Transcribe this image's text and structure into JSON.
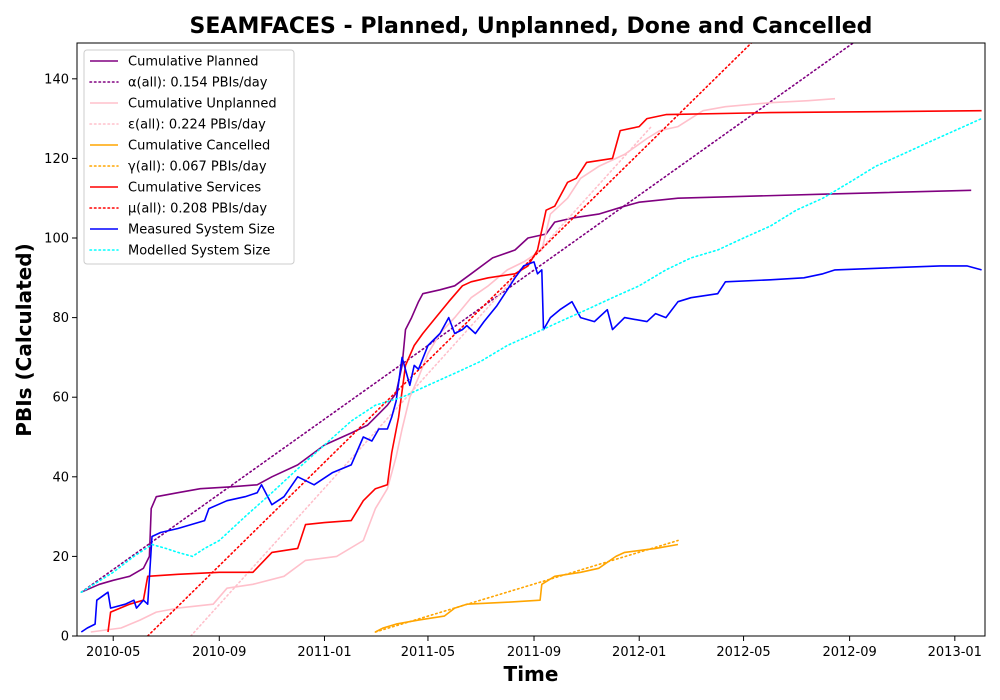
{
  "chart_data": {
    "type": "line",
    "title": "SEAMFACES - Planned, Unplanned, Done  and Cancelled",
    "xlabel": "Time",
    "ylabel": "PBIs (Calculated)",
    "xlim": [
      "2010-03-20",
      "2013-02-05"
    ],
    "ylim": [
      0,
      149
    ],
    "x_ticks": [
      "2010-05",
      "2010-09",
      "2011-01",
      "2011-05",
      "2011-09",
      "2012-01",
      "2012-05",
      "2012-09",
      "2013-01"
    ],
    "y_ticks": [
      0,
      20,
      40,
      60,
      80,
      100,
      120,
      140
    ],
    "grid": false,
    "legend_position": "top-left",
    "series": [
      {
        "name": "Cumulative Planned",
        "color": "#800080",
        "style": "solid",
        "points": [
          [
            "2010-03-25",
            11
          ],
          [
            "2010-04-15",
            13
          ],
          [
            "2010-05-01",
            14
          ],
          [
            "2010-05-20",
            15
          ],
          [
            "2010-06-05",
            17
          ],
          [
            "2010-06-12",
            20
          ],
          [
            "2010-06-14",
            32
          ],
          [
            "2010-06-20",
            35
          ],
          [
            "2010-07-15",
            36
          ],
          [
            "2010-08-10",
            37
          ],
          [
            "2010-09-15",
            37.5
          ],
          [
            "2010-10-15",
            38
          ],
          [
            "2010-11-01",
            40
          ],
          [
            "2010-12-01",
            43
          ],
          [
            "2011-01-01",
            48
          ],
          [
            "2011-02-01",
            51
          ],
          [
            "2011-02-20",
            53
          ],
          [
            "2011-03-15",
            58
          ],
          [
            "2011-03-25",
            61
          ],
          [
            "2011-04-01",
            68
          ],
          [
            "2011-04-05",
            77
          ],
          [
            "2011-04-12",
            80
          ],
          [
            "2011-04-20",
            84
          ],
          [
            "2011-04-25",
            86
          ],
          [
            "2011-05-15",
            87
          ],
          [
            "2011-06-01",
            88
          ],
          [
            "2011-06-20",
            91
          ],
          [
            "2011-07-15",
            95
          ],
          [
            "2011-08-10",
            97
          ],
          [
            "2011-08-25",
            100
          ],
          [
            "2011-09-15",
            101
          ],
          [
            "2011-09-25",
            104
          ],
          [
            "2011-10-15",
            105
          ],
          [
            "2011-11-15",
            106
          ],
          [
            "2011-12-15",
            108
          ],
          [
            "2012-01-01",
            109
          ],
          [
            "2012-02-15",
            110
          ],
          [
            "2012-08-01",
            111
          ],
          [
            "2013-01-20",
            112
          ]
        ]
      },
      {
        "name": "α(all): 0.154 PBIs/day",
        "color": "#800080",
        "style": "dotted",
        "points": [
          [
            "2010-03-25",
            11
          ],
          [
            "2012-09-05",
            149
          ]
        ]
      },
      {
        "name": "Cumulative Unplanned",
        "color": "#ffc0cb",
        "style": "solid",
        "points": [
          [
            "2010-04-05",
            1
          ],
          [
            "2010-05-10",
            2
          ],
          [
            "2010-06-01",
            4
          ],
          [
            "2010-06-20",
            6
          ],
          [
            "2010-07-15",
            7
          ],
          [
            "2010-08-25",
            8
          ],
          [
            "2010-09-10",
            12
          ],
          [
            "2010-10-10",
            13
          ],
          [
            "2010-11-15",
            15
          ],
          [
            "2010-12-10",
            19
          ],
          [
            "2011-01-15",
            20
          ],
          [
            "2011-02-15",
            24
          ],
          [
            "2011-03-01",
            32
          ],
          [
            "2011-03-15",
            37
          ],
          [
            "2011-03-25",
            45
          ],
          [
            "2011-04-01",
            52
          ],
          [
            "2011-04-10",
            60
          ],
          [
            "2011-04-20",
            65
          ],
          [
            "2011-05-01",
            71
          ],
          [
            "2011-05-15",
            76
          ],
          [
            "2011-06-01",
            80
          ],
          [
            "2011-06-20",
            85
          ],
          [
            "2011-07-10",
            88
          ],
          [
            "2011-08-01",
            92
          ],
          [
            "2011-08-20",
            94
          ],
          [
            "2011-09-10",
            97
          ],
          [
            "2011-09-20",
            106
          ],
          [
            "2011-10-10",
            110
          ],
          [
            "2011-10-25",
            115
          ],
          [
            "2011-11-15",
            118
          ],
          [
            "2011-12-15",
            121
          ],
          [
            "2012-01-10",
            125
          ],
          [
            "2012-01-25",
            127
          ],
          [
            "2012-02-15",
            128
          ],
          [
            "2012-03-15",
            132
          ],
          [
            "2012-04-10",
            133
          ],
          [
            "2012-06-01",
            134
          ],
          [
            "2012-07-15",
            134.5
          ],
          [
            "2012-08-15",
            135
          ]
        ]
      },
      {
        "name": "ε(all): 0.224 PBIs/day",
        "color": "#ffc0cb",
        "style": "dotted",
        "points": [
          [
            "2010-07-30",
            0
          ],
          [
            "2012-01-15",
            128
          ]
        ]
      },
      {
        "name": "Cumulative Cancelled",
        "color": "#ffa500",
        "style": "solid",
        "points": [
          [
            "2011-03-01",
            1
          ],
          [
            "2011-03-10",
            2
          ],
          [
            "2011-03-25",
            3
          ],
          [
            "2011-04-20",
            4
          ],
          [
            "2011-05-20",
            5
          ],
          [
            "2011-06-01",
            7
          ],
          [
            "2011-06-15",
            8
          ],
          [
            "2011-08-01",
            8.5
          ],
          [
            "2011-09-08",
            9
          ],
          [
            "2011-09-10",
            13
          ],
          [
            "2011-09-25",
            15
          ],
          [
            "2011-10-25",
            16
          ],
          [
            "2011-11-15",
            17
          ],
          [
            "2011-12-05",
            20
          ],
          [
            "2011-12-15",
            21
          ],
          [
            "2012-01-20",
            22
          ],
          [
            "2012-02-15",
            23
          ]
        ]
      },
      {
        "name": "γ(all): 0.067 PBIs/day",
        "color": "#ffa500",
        "style": "dotted",
        "points": [
          [
            "2011-03-01",
            1
          ],
          [
            "2012-02-15",
            24
          ]
        ]
      },
      {
        "name": "Cumulative Services",
        "color": "#ff0000",
        "style": "solid",
        "points": [
          [
            "2010-04-25",
            1
          ],
          [
            "2010-04-28",
            6
          ],
          [
            "2010-05-20",
            8
          ],
          [
            "2010-06-05",
            9
          ],
          [
            "2010-06-10",
            15
          ],
          [
            "2010-07-15",
            15.5
          ],
          [
            "2010-09-01",
            16
          ],
          [
            "2010-10-10",
            16
          ],
          [
            "2010-11-01",
            21
          ],
          [
            "2010-12-01",
            22
          ],
          [
            "2010-12-10",
            28
          ],
          [
            "2011-01-01",
            28.5
          ],
          [
            "2011-02-01",
            29
          ],
          [
            "2011-02-15",
            34
          ],
          [
            "2011-03-01",
            37
          ],
          [
            "2011-03-15",
            38
          ],
          [
            "2011-03-20",
            46
          ],
          [
            "2011-03-28",
            55
          ],
          [
            "2011-04-05",
            68
          ],
          [
            "2011-04-15",
            73
          ],
          [
            "2011-04-25",
            76
          ],
          [
            "2011-05-10",
            80
          ],
          [
            "2011-05-25",
            84
          ],
          [
            "2011-06-10",
            88
          ],
          [
            "2011-06-20",
            89
          ],
          [
            "2011-07-10",
            90
          ],
          [
            "2011-08-10",
            91
          ],
          [
            "2011-08-25",
            93
          ],
          [
            "2011-09-05",
            97
          ],
          [
            "2011-09-15",
            107
          ],
          [
            "2011-09-25",
            108
          ],
          [
            "2011-10-10",
            114
          ],
          [
            "2011-10-20",
            115
          ],
          [
            "2011-11-01",
            119
          ],
          [
            "2011-12-01",
            120
          ],
          [
            "2011-12-10",
            127
          ],
          [
            "2012-01-01",
            128
          ],
          [
            "2012-01-10",
            130
          ],
          [
            "2012-02-01",
            131
          ],
          [
            "2012-06-01",
            131.5
          ],
          [
            "2013-02-01",
            132
          ]
        ]
      },
      {
        "name": "μ(all): 0.208 PBIs/day",
        "color": "#ff0000",
        "style": "dotted",
        "points": [
          [
            "2010-06-10",
            0
          ],
          [
            "2012-05-10",
            149
          ]
        ]
      },
      {
        "name": "Measured System Size",
        "color": "#0000ff",
        "style": "solid",
        "points": [
          [
            "2010-03-25",
            1
          ],
          [
            "2010-04-01",
            2
          ],
          [
            "2010-04-10",
            3
          ],
          [
            "2010-04-12",
            9
          ],
          [
            "2010-04-25",
            11
          ],
          [
            "2010-04-28",
            7
          ],
          [
            "2010-05-15",
            8
          ],
          [
            "2010-05-25",
            9
          ],
          [
            "2010-05-28",
            7
          ],
          [
            "2010-06-05",
            9
          ],
          [
            "2010-06-10",
            8
          ],
          [
            "2010-06-15",
            25
          ],
          [
            "2010-06-25",
            26
          ],
          [
            "2010-07-15",
            27
          ],
          [
            "2010-08-15",
            29
          ],
          [
            "2010-08-20",
            32
          ],
          [
            "2010-09-10",
            34
          ],
          [
            "2010-10-01",
            35
          ],
          [
            "2010-10-15",
            36
          ],
          [
            "2010-10-20",
            38
          ],
          [
            "2010-11-01",
            33
          ],
          [
            "2010-11-15",
            35
          ],
          [
            "2010-12-01",
            40
          ],
          [
            "2010-12-20",
            38
          ],
          [
            "2011-01-10",
            41
          ],
          [
            "2011-02-01",
            43
          ],
          [
            "2011-02-15",
            50
          ],
          [
            "2011-02-25",
            49
          ],
          [
            "2011-03-05",
            52
          ],
          [
            "2011-03-15",
            52
          ],
          [
            "2011-03-20",
            55
          ],
          [
            "2011-03-25",
            59
          ],
          [
            "2011-04-01",
            70
          ],
          [
            "2011-04-10",
            63
          ],
          [
            "2011-04-15",
            68
          ],
          [
            "2011-04-20",
            67
          ],
          [
            "2011-05-01",
            73
          ],
          [
            "2011-05-15",
            76
          ],
          [
            "2011-05-25",
            80
          ],
          [
            "2011-06-01",
            76
          ],
          [
            "2011-06-10",
            77
          ],
          [
            "2011-06-15",
            78
          ],
          [
            "2011-06-25",
            76
          ],
          [
            "2011-07-05",
            79
          ],
          [
            "2011-07-20",
            83
          ],
          [
            "2011-08-01",
            87
          ],
          [
            "2011-08-10",
            90
          ],
          [
            "2011-08-20",
            93
          ],
          [
            "2011-09-01",
            94
          ],
          [
            "2011-09-05",
            91
          ],
          [
            "2011-09-10",
            92
          ],
          [
            "2011-09-12",
            77
          ],
          [
            "2011-09-20",
            80
          ],
          [
            "2011-10-01",
            82
          ],
          [
            "2011-10-15",
            84
          ],
          [
            "2011-10-25",
            80
          ],
          [
            "2011-11-10",
            79
          ],
          [
            "2011-11-25",
            82
          ],
          [
            "2011-12-01",
            77
          ],
          [
            "2011-12-15",
            80
          ],
          [
            "2012-01-10",
            79
          ],
          [
            "2012-01-20",
            81
          ],
          [
            "2012-02-01",
            80
          ],
          [
            "2012-02-15",
            84
          ],
          [
            "2012-03-01",
            85
          ],
          [
            "2012-04-01",
            86
          ],
          [
            "2012-04-10",
            89
          ],
          [
            "2012-06-01",
            89.5
          ],
          [
            "2012-07-10",
            90
          ],
          [
            "2012-08-01",
            91
          ],
          [
            "2012-08-15",
            92
          ],
          [
            "2012-12-15",
            93
          ],
          [
            "2013-01-15",
            93
          ],
          [
            "2013-02-01",
            92
          ]
        ]
      },
      {
        "name": "Modelled System Size",
        "color": "#00ffff",
        "style": "dotted",
        "points": [
          [
            "2010-03-25",
            11
          ],
          [
            "2010-05-01",
            16
          ],
          [
            "2010-05-25",
            20
          ],
          [
            "2010-06-15",
            23
          ],
          [
            "2010-07-01",
            22
          ],
          [
            "2010-07-15",
            21
          ],
          [
            "2010-08-01",
            20
          ],
          [
            "2010-08-15",
            22
          ],
          [
            "2010-09-01",
            24
          ],
          [
            "2010-10-01",
            30
          ],
          [
            "2010-11-01",
            36
          ],
          [
            "2010-12-01",
            42
          ],
          [
            "2011-01-01",
            48
          ],
          [
            "2011-02-01",
            54
          ],
          [
            "2011-03-01",
            58
          ],
          [
            "2011-04-01",
            60
          ],
          [
            "2011-05-01",
            63
          ],
          [
            "2011-06-01",
            66
          ],
          [
            "2011-07-01",
            69
          ],
          [
            "2011-08-01",
            73
          ],
          [
            "2011-09-01",
            76
          ],
          [
            "2011-10-01",
            79
          ],
          [
            "2011-11-01",
            82
          ],
          [
            "2011-12-01",
            85
          ],
          [
            "2012-01-01",
            88
          ],
          [
            "2012-02-01",
            92
          ],
          [
            "2012-03-01",
            95
          ],
          [
            "2012-04-01",
            97
          ],
          [
            "2012-05-01",
            100
          ],
          [
            "2012-06-01",
            103
          ],
          [
            "2012-07-01",
            107
          ],
          [
            "2012-08-01",
            110
          ],
          [
            "2012-09-01",
            114
          ],
          [
            "2012-10-01",
            118
          ],
          [
            "2012-11-01",
            121
          ],
          [
            "2012-12-01",
            124
          ],
          [
            "2013-01-01",
            127
          ],
          [
            "2013-02-01",
            130
          ]
        ]
      }
    ]
  }
}
